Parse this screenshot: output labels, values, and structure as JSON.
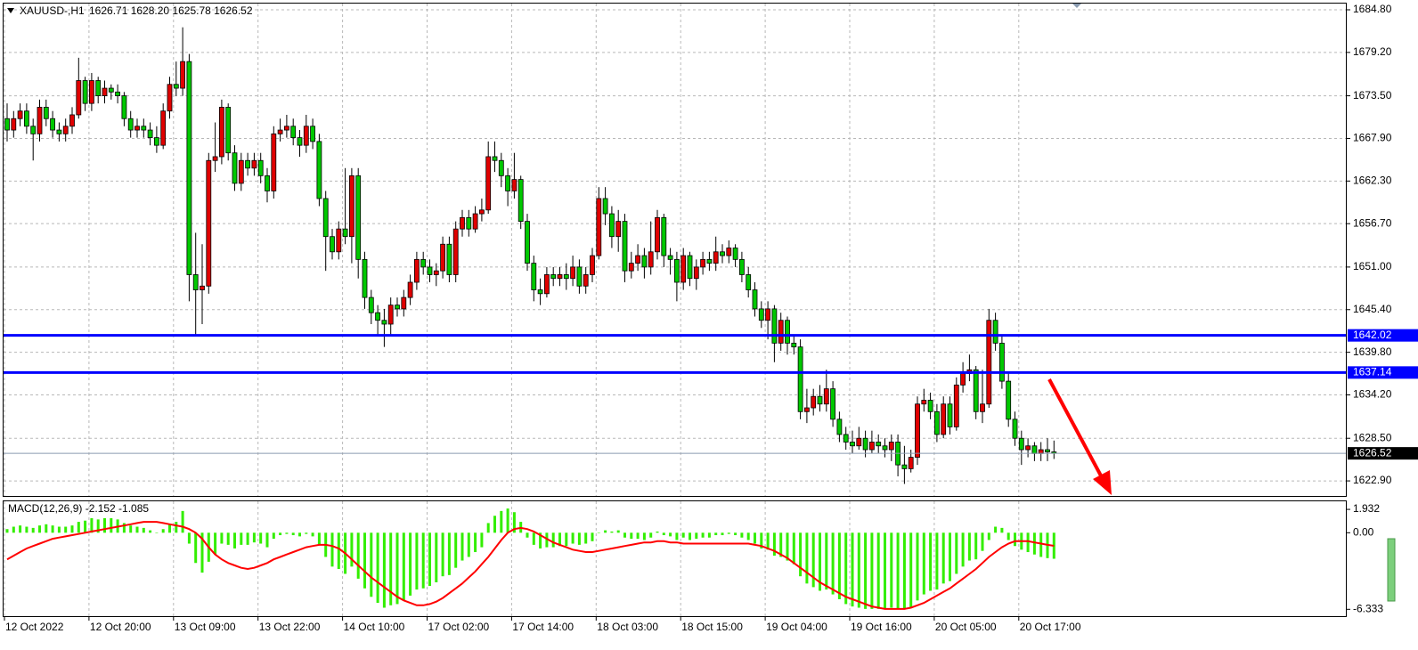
{
  "chart_data": [
    {
      "type": "candlestick",
      "symbol": "XAUUSD-,H1",
      "ohlc_text": "1626.71 1628.20 1625.78 1626.52",
      "categories": [
        "12 Oct 2022",
        null,
        null,
        null,
        null,
        null,
        null,
        null,
        null,
        null,
        null,
        null,
        null,
        "12 Oct 20:00",
        null,
        null,
        null,
        null,
        null,
        null,
        null,
        null,
        null,
        null,
        null,
        null,
        "13 Oct 09:00",
        null,
        null,
        null,
        null,
        null,
        null,
        null,
        null,
        null,
        null,
        null,
        null,
        "13 Oct 22:00",
        null,
        null,
        null,
        null,
        null,
        null,
        null,
        null,
        null,
        null,
        null,
        null,
        "14 Oct 10:00",
        null,
        null,
        null,
        null,
        null,
        null,
        null,
        null,
        null,
        null,
        null,
        null,
        "17 Oct 02:00",
        null,
        null,
        null,
        null,
        null,
        null,
        null,
        null,
        null,
        null,
        null,
        null,
        "17 Oct 14:00",
        null,
        null,
        null,
        null,
        null,
        null,
        null,
        null,
        null,
        null,
        null,
        null,
        "18 Oct 03:00",
        null,
        null,
        null,
        null,
        null,
        null,
        null,
        null,
        null,
        null,
        null,
        null,
        "18 Oct 15:00",
        null,
        null,
        null,
        null,
        null,
        null,
        null,
        null,
        null,
        null,
        null,
        null,
        "19 Oct 04:00",
        null,
        null,
        null,
        null,
        null,
        null,
        null,
        null,
        null,
        null,
        null,
        null,
        "19 Oct 16:00",
        null,
        null,
        null,
        null,
        null,
        null,
        null,
        null,
        null,
        null,
        null,
        null,
        "20 Oct 05:00",
        null,
        null,
        null,
        null,
        null,
        null,
        null,
        null,
        null,
        null,
        null,
        null,
        "20 Oct 17:00",
        null,
        null,
        null,
        null,
        null
      ],
      "open": [
        1670.5,
        1669,
        1670.5,
        1671.5,
        1669.5,
        1668.5,
        1672,
        1670.5,
        1669,
        1668.5,
        1669.5,
        1671,
        1675.5,
        1672.5,
        1675.5,
        1673.5,
        1674.5,
        1674,
        1673.5,
        1670.5,
        1669,
        1669.5,
        1669,
        1668,
        1667,
        1671.5,
        1675,
        1674.5,
        1678,
        1650,
        1648,
        1648.5,
        1665,
        1665.5,
        1672,
        1666,
        1662,
        1665,
        1664,
        1665,
        1663,
        1661,
        1668.5,
        1669,
        1669.5,
        1668,
        1667,
        1669.5,
        1667.5,
        1660,
        1655,
        1653,
        1656,
        1655,
        1663,
        1652,
        1647,
        1645,
        1644,
        1643.5,
        1646,
        1645.5,
        1647,
        1649,
        1652,
        1651,
        1650,
        1650.5,
        1654,
        1650,
        1656,
        1657.5,
        1656,
        1658,
        1658.5,
        1665.5,
        1665,
        1663,
        1661,
        1662.5,
        1657,
        1651.5,
        1648,
        1647.5,
        1650,
        1649.5,
        1650,
        1649.5,
        1651,
        1648.5,
        1650,
        1652.5,
        1660,
        1658,
        1655,
        1657,
        1650.5,
        1651.5,
        1652.5,
        1651,
        1653,
        1657.5,
        1652.5,
        1652,
        1649,
        1652.5,
        1649.5,
        1651,
        1652,
        1651.5,
        1653,
        1652.5,
        1653.5,
        1652,
        1650,
        1648,
        1645.5,
        1644,
        1645.5,
        1641,
        1644,
        1641,
        1640.5,
        1632,
        1632.5,
        1634,
        1633,
        1635,
        1631,
        1629,
        1628,
        1627.5,
        1628.5,
        1627,
        1628,
        1627.5,
        1627,
        1628,
        1625,
        1624.5,
        1626,
        1633,
        1633.5,
        1632,
        1629,
        1633,
        1630,
        1635.5,
        1637,
        1637.5,
        1632,
        1633,
        1644,
        1641,
        1636,
        1631,
        1628.5,
        1627,
        1627.5,
        1626.5,
        1627,
        1626.71
      ],
      "high": [
        1672.5,
        1671.5,
        1672.5,
        1672.5,
        1670.5,
        1673,
        1673,
        1671.5,
        1670,
        1670.5,
        1672,
        1678.5,
        1676,
        1676.5,
        1676,
        1675.5,
        1675,
        1675,
        1674,
        1671.5,
        1670.5,
        1670.5,
        1670,
        1669.5,
        1672.5,
        1676,
        1678,
        1682.5,
        1679,
        1655.5,
        1654,
        1666,
        1670,
        1673,
        1672.5,
        1667,
        1666,
        1666,
        1666,
        1666,
        1664,
        1669.5,
        1670.5,
        1671,
        1670.5,
        1669,
        1671,
        1670.5,
        1668.5,
        1661,
        1656,
        1657,
        1664,
        1664,
        1664,
        1653,
        1648,
        1646,
        1645.5,
        1647,
        1647,
        1648,
        1650,
        1653,
        1653,
        1652,
        1651.5,
        1655,
        1655,
        1657,
        1658.5,
        1658.5,
        1659,
        1660,
        1667.5,
        1667.5,
        1666,
        1664,
        1666,
        1663,
        1658,
        1652.5,
        1649.5,
        1651,
        1651,
        1651,
        1651.5,
        1652.5,
        1652,
        1651,
        1653.5,
        1661.5,
        1661.5,
        1659,
        1658.5,
        1658,
        1653,
        1654,
        1653.5,
        1657,
        1658.5,
        1658,
        1653.5,
        1653,
        1653.5,
        1653,
        1652,
        1653,
        1653,
        1655,
        1654,
        1654.5,
        1654,
        1653,
        1651,
        1649,
        1646.5,
        1646.5,
        1646,
        1645,
        1644.5,
        1642,
        1641.5,
        1635,
        1635,
        1635.5,
        1637.5,
        1636,
        1632,
        1630,
        1629.5,
        1630,
        1629.5,
        1629.5,
        1629,
        1628.5,
        1629,
        1629,
        1627.5,
        1627,
        1634,
        1635,
        1634.5,
        1633,
        1634,
        1634,
        1636.5,
        1638.5,
        1639.5,
        1638,
        1637.5,
        1645.5,
        1645,
        1642,
        1637,
        1632,
        1629.5,
        1628.5,
        1628,
        1628,
        1628.5,
        1628.2
      ],
      "low": [
        1667.5,
        1668,
        1669.5,
        1668.5,
        1665,
        1667.5,
        1669.5,
        1668,
        1667.5,
        1667.5,
        1668.5,
        1670.5,
        1671.5,
        1671.5,
        1672.5,
        1672.5,
        1673,
        1672.5,
        1669.5,
        1668,
        1668,
        1668,
        1667,
        1666,
        1666.5,
        1670.5,
        1673.5,
        1673.5,
        1646.5,
        1642,
        1643.5,
        1647.5,
        1663.5,
        1664.5,
        1665,
        1661,
        1661,
        1663,
        1663,
        1662,
        1659.5,
        1660,
        1667.5,
        1668,
        1667,
        1665.5,
        1666,
        1666.5,
        1659,
        1650.5,
        1652,
        1652,
        1654,
        1651.5,
        1649.5,
        1645.5,
        1643.5,
        1642,
        1640.5,
        1642,
        1644.5,
        1644.5,
        1646,
        1648,
        1650,
        1649,
        1648.5,
        1649.5,
        1649,
        1649,
        1655,
        1655,
        1655.5,
        1657,
        1658,
        1663.5,
        1661.5,
        1659,
        1660,
        1656,
        1650.5,
        1646.5,
        1646,
        1647,
        1648.5,
        1648.5,
        1648,
        1648.5,
        1647.5,
        1647.5,
        1649,
        1652,
        1656.5,
        1653.5,
        1653,
        1649,
        1649.5,
        1650.5,
        1649.5,
        1650,
        1652,
        1651,
        1650,
        1646.5,
        1648,
        1648.5,
        1648,
        1650,
        1650.5,
        1650.5,
        1651.5,
        1651.5,
        1651,
        1649,
        1647,
        1644.5,
        1643,
        1641.5,
        1638.5,
        1640,
        1639.5,
        1639.5,
        1631,
        1630.5,
        1631.5,
        1632,
        1632,
        1630,
        1628,
        1627,
        1626.5,
        1627,
        1626,
        1626.5,
        1626.5,
        1626,
        1625.5,
        1623.5,
        1622.5,
        1624,
        1625,
        1632,
        1631,
        1628,
        1628.5,
        1629,
        1629.5,
        1634.5,
        1636,
        1631,
        1630.5,
        1632.5,
        1640,
        1635,
        1630,
        1627.5,
        1625,
        1626,
        1625.5,
        1625.5,
        1625.5,
        1625.78
      ],
      "close": [
        1669,
        1670.5,
        1671.5,
        1669.5,
        1668.5,
        1672,
        1670.5,
        1669,
        1668.5,
        1669.5,
        1671,
        1675.5,
        1672.5,
        1675.5,
        1673.5,
        1674.5,
        1674,
        1673.5,
        1670.5,
        1669,
        1669.5,
        1669,
        1668,
        1667,
        1671.5,
        1675,
        1674.5,
        1678,
        1650,
        1648,
        1648.5,
        1665,
        1665.5,
        1672,
        1666,
        1662,
        1665,
        1664,
        1665,
        1663,
        1661,
        1668.5,
        1669,
        1669.5,
        1668,
        1667,
        1669.5,
        1667.5,
        1660,
        1655,
        1653,
        1656,
        1655,
        1663,
        1652,
        1647,
        1645,
        1644,
        1643.5,
        1646,
        1645.5,
        1647,
        1649,
        1652,
        1651,
        1650,
        1650.5,
        1654,
        1650,
        1656,
        1657.5,
        1656,
        1658,
        1658.5,
        1665.5,
        1665,
        1663,
        1661,
        1662.5,
        1657,
        1651.5,
        1648,
        1647.5,
        1650,
        1649.5,
        1650,
        1649.5,
        1651,
        1648.5,
        1650,
        1652.5,
        1660,
        1658,
        1655,
        1657,
        1650.5,
        1651.5,
        1652.5,
        1651,
        1653,
        1657.5,
        1652.5,
        1652,
        1649,
        1652.5,
        1649.5,
        1651,
        1652,
        1651.5,
        1653,
        1652.5,
        1653.5,
        1652,
        1650,
        1648,
        1645.5,
        1644,
        1645.5,
        1641,
        1644,
        1641,
        1640.5,
        1632,
        1632.5,
        1634,
        1633,
        1635,
        1631,
        1629,
        1628,
        1627.5,
        1628.5,
        1627,
        1628,
        1627.5,
        1627,
        1628,
        1625,
        1624.5,
        1626,
        1633,
        1633.5,
        1632,
        1629,
        1633,
        1630,
        1635.5,
        1637,
        1637.5,
        1632,
        1633,
        1644,
        1641,
        1636,
        1631,
        1628.5,
        1627,
        1627.5,
        1626.5,
        1627,
        1626.71,
        1626.52
      ],
      "up_color": "#e00000",
      "down_color": "#00c800",
      "ylim": [
        1620.92,
        1685.62
      ],
      "yticks": [
        {
          "value": 1684.8,
          "label": "1684.80"
        },
        {
          "value": 1679.2,
          "label": "1679.20"
        },
        {
          "value": 1673.5,
          "label": "1673.50"
        },
        {
          "value": 1667.9,
          "label": "1667.90"
        },
        {
          "value": 1662.3,
          "label": "1662.30"
        },
        {
          "value": 1656.7,
          "label": "1656.70"
        },
        {
          "value": 1651,
          "label": "1651.00"
        },
        {
          "value": 1645.4,
          "label": "1645.40"
        },
        {
          "value": 1639.8,
          "label": "1639.80"
        },
        {
          "value": 1634.2,
          "label": "1634.20"
        },
        {
          "value": 1628.5,
          "label": "1628.50"
        },
        {
          "value": 1622.9,
          "label": "1622.90"
        }
      ],
      "grid": true,
      "hlines": [
        1642.02,
        1637.14
      ],
      "hline_color": "#0000ff",
      "bid": 1626.52,
      "bid_color": "#8a9bb0"
    },
    {
      "type": "macd",
      "title": "MACD(12,26,9) -2.152 -1.085",
      "histogram": [
        0.3,
        0.5,
        0.6,
        0.5,
        0.4,
        0.6,
        0.7,
        0.6,
        0.5,
        0.5,
        0.6,
        0.9,
        1.0,
        1.2,
        1.1,
        1.2,
        1.2,
        1.1,
        0.8,
        0.6,
        0.5,
        0.4,
        0.2,
        0.0,
        0.3,
        0.7,
        0.9,
        1.8,
        -0.9,
        -2.5,
        -3.3,
        -2.4,
        -1.8,
        -0.9,
        -1.0,
        -1.3,
        -1.0,
        -1.0,
        -0.8,
        -0.9,
        -1.2,
        -0.5,
        -0.2,
        -0.1,
        -0.2,
        -0.3,
        -0.1,
        -0.3,
        -1.0,
        -2.0,
        -2.8,
        -3.0,
        -3.4,
        -2.8,
        -3.8,
        -4.6,
        -5.3,
        -5.8,
        -6.2,
        -6.0,
        -5.9,
        -5.6,
        -5.2,
        -4.7,
        -4.6,
        -4.4,
        -4.1,
        -3.6,
        -3.5,
        -2.9,
        -2.3,
        -2.0,
        -1.6,
        -1.2,
        0.8,
        1.4,
        1.8,
        2.0,
        1.7,
        0.9,
        -0.4,
        -1.0,
        -1.3,
        -1.2,
        -1.2,
        -1.1,
        -1.1,
        -0.9,
        -1.0,
        -0.9,
        -0.7,
        0.0,
        0.2,
        0.1,
        0.2,
        -0.4,
        -0.5,
        -0.5,
        -0.6,
        -0.4,
        0.1,
        -0.2,
        -0.3,
        -0.6,
        -0.4,
        -0.6,
        -0.5,
        -0.4,
        -0.4,
        -0.2,
        -0.2,
        -0.1,
        -0.2,
        -0.4,
        -0.6,
        -0.9,
        -1.3,
        -1.4,
        -1.9,
        -2.0,
        -2.3,
        -2.6,
        -3.6,
        -4.2,
        -4.5,
        -4.8,
        -4.7,
        -5.1,
        -5.5,
        -5.9,
        -6.1,
        -6.2,
        -6.3,
        -6.3,
        -6.3,
        -6.3,
        -6.2,
        -6.3,
        -6.3,
        -6.2,
        -5.6,
        -5.1,
        -4.8,
        -4.7,
        -4.2,
        -4.0,
        -3.4,
        -2.8,
        -2.3,
        -2.2,
        -1.5,
        -0.6,
        0.5,
        0.4,
        -0.6,
        -1.1,
        -1.4,
        -1.6,
        -1.8,
        -2.0,
        -2.1,
        -2.152
      ],
      "signal": [
        -2.2,
        -1.9,
        -1.6,
        -1.3,
        -1.1,
        -0.9,
        -0.7,
        -0.5,
        -0.4,
        -0.3,
        -0.2,
        -0.1,
        0.0,
        0.1,
        0.2,
        0.3,
        0.4,
        0.5,
        0.6,
        0.7,
        0.8,
        0.9,
        0.9,
        0.9,
        0.8,
        0.7,
        0.6,
        0.5,
        0.3,
        0.0,
        -0.5,
        -1.2,
        -1.8,
        -2.2,
        -2.5,
        -2.7,
        -2.9,
        -3.0,
        -2.9,
        -2.7,
        -2.5,
        -2.2,
        -2.0,
        -1.8,
        -1.6,
        -1.4,
        -1.2,
        -1.1,
        -1.0,
        -1.0,
        -1.1,
        -1.3,
        -1.7,
        -2.2,
        -2.7,
        -3.2,
        -3.7,
        -4.1,
        -4.5,
        -4.9,
        -5.3,
        -5.6,
        -5.8,
        -6.0,
        -6.0,
        -5.9,
        -5.7,
        -5.4,
        -5.0,
        -4.6,
        -4.2,
        -3.7,
        -3.2,
        -2.6,
        -2.0,
        -1.3,
        -0.6,
        0.0,
        0.3,
        0.4,
        0.3,
        0.1,
        -0.2,
        -0.5,
        -0.8,
        -1.0,
        -1.2,
        -1.4,
        -1.5,
        -1.6,
        -1.6,
        -1.5,
        -1.4,
        -1.3,
        -1.2,
        -1.1,
        -1.0,
        -0.9,
        -0.8,
        -0.8,
        -0.7,
        -0.7,
        -0.8,
        -0.8,
        -0.9,
        -0.9,
        -0.9,
        -0.9,
        -0.9,
        -0.9,
        -0.9,
        -0.9,
        -0.9,
        -0.9,
        -0.9,
        -1.0,
        -1.1,
        -1.3,
        -1.5,
        -1.8,
        -2.1,
        -2.5,
        -2.9,
        -3.3,
        -3.7,
        -4.1,
        -4.4,
        -4.7,
        -5.0,
        -5.3,
        -5.5,
        -5.7,
        -5.9,
        -6.1,
        -6.2,
        -6.3,
        -6.3,
        -6.3,
        -6.3,
        -6.2,
        -6.0,
        -5.8,
        -5.5,
        -5.2,
        -4.9,
        -4.6,
        -4.2,
        -3.8,
        -3.4,
        -3.0,
        -2.5,
        -2.0,
        -1.6,
        -1.2,
        -0.9,
        -0.7,
        -0.7,
        -0.7,
        -0.8,
        -0.9,
        -1.0,
        -1.085
      ],
      "histogram_color": "#33ee00",
      "signal_color": "#ff0000",
      "ylim": [
        -6.9,
        2.6
      ],
      "yticks": [
        1.932,
        {
          "value": 0,
          "label": "0.00"
        },
        -6.333
      ]
    }
  ]
}
